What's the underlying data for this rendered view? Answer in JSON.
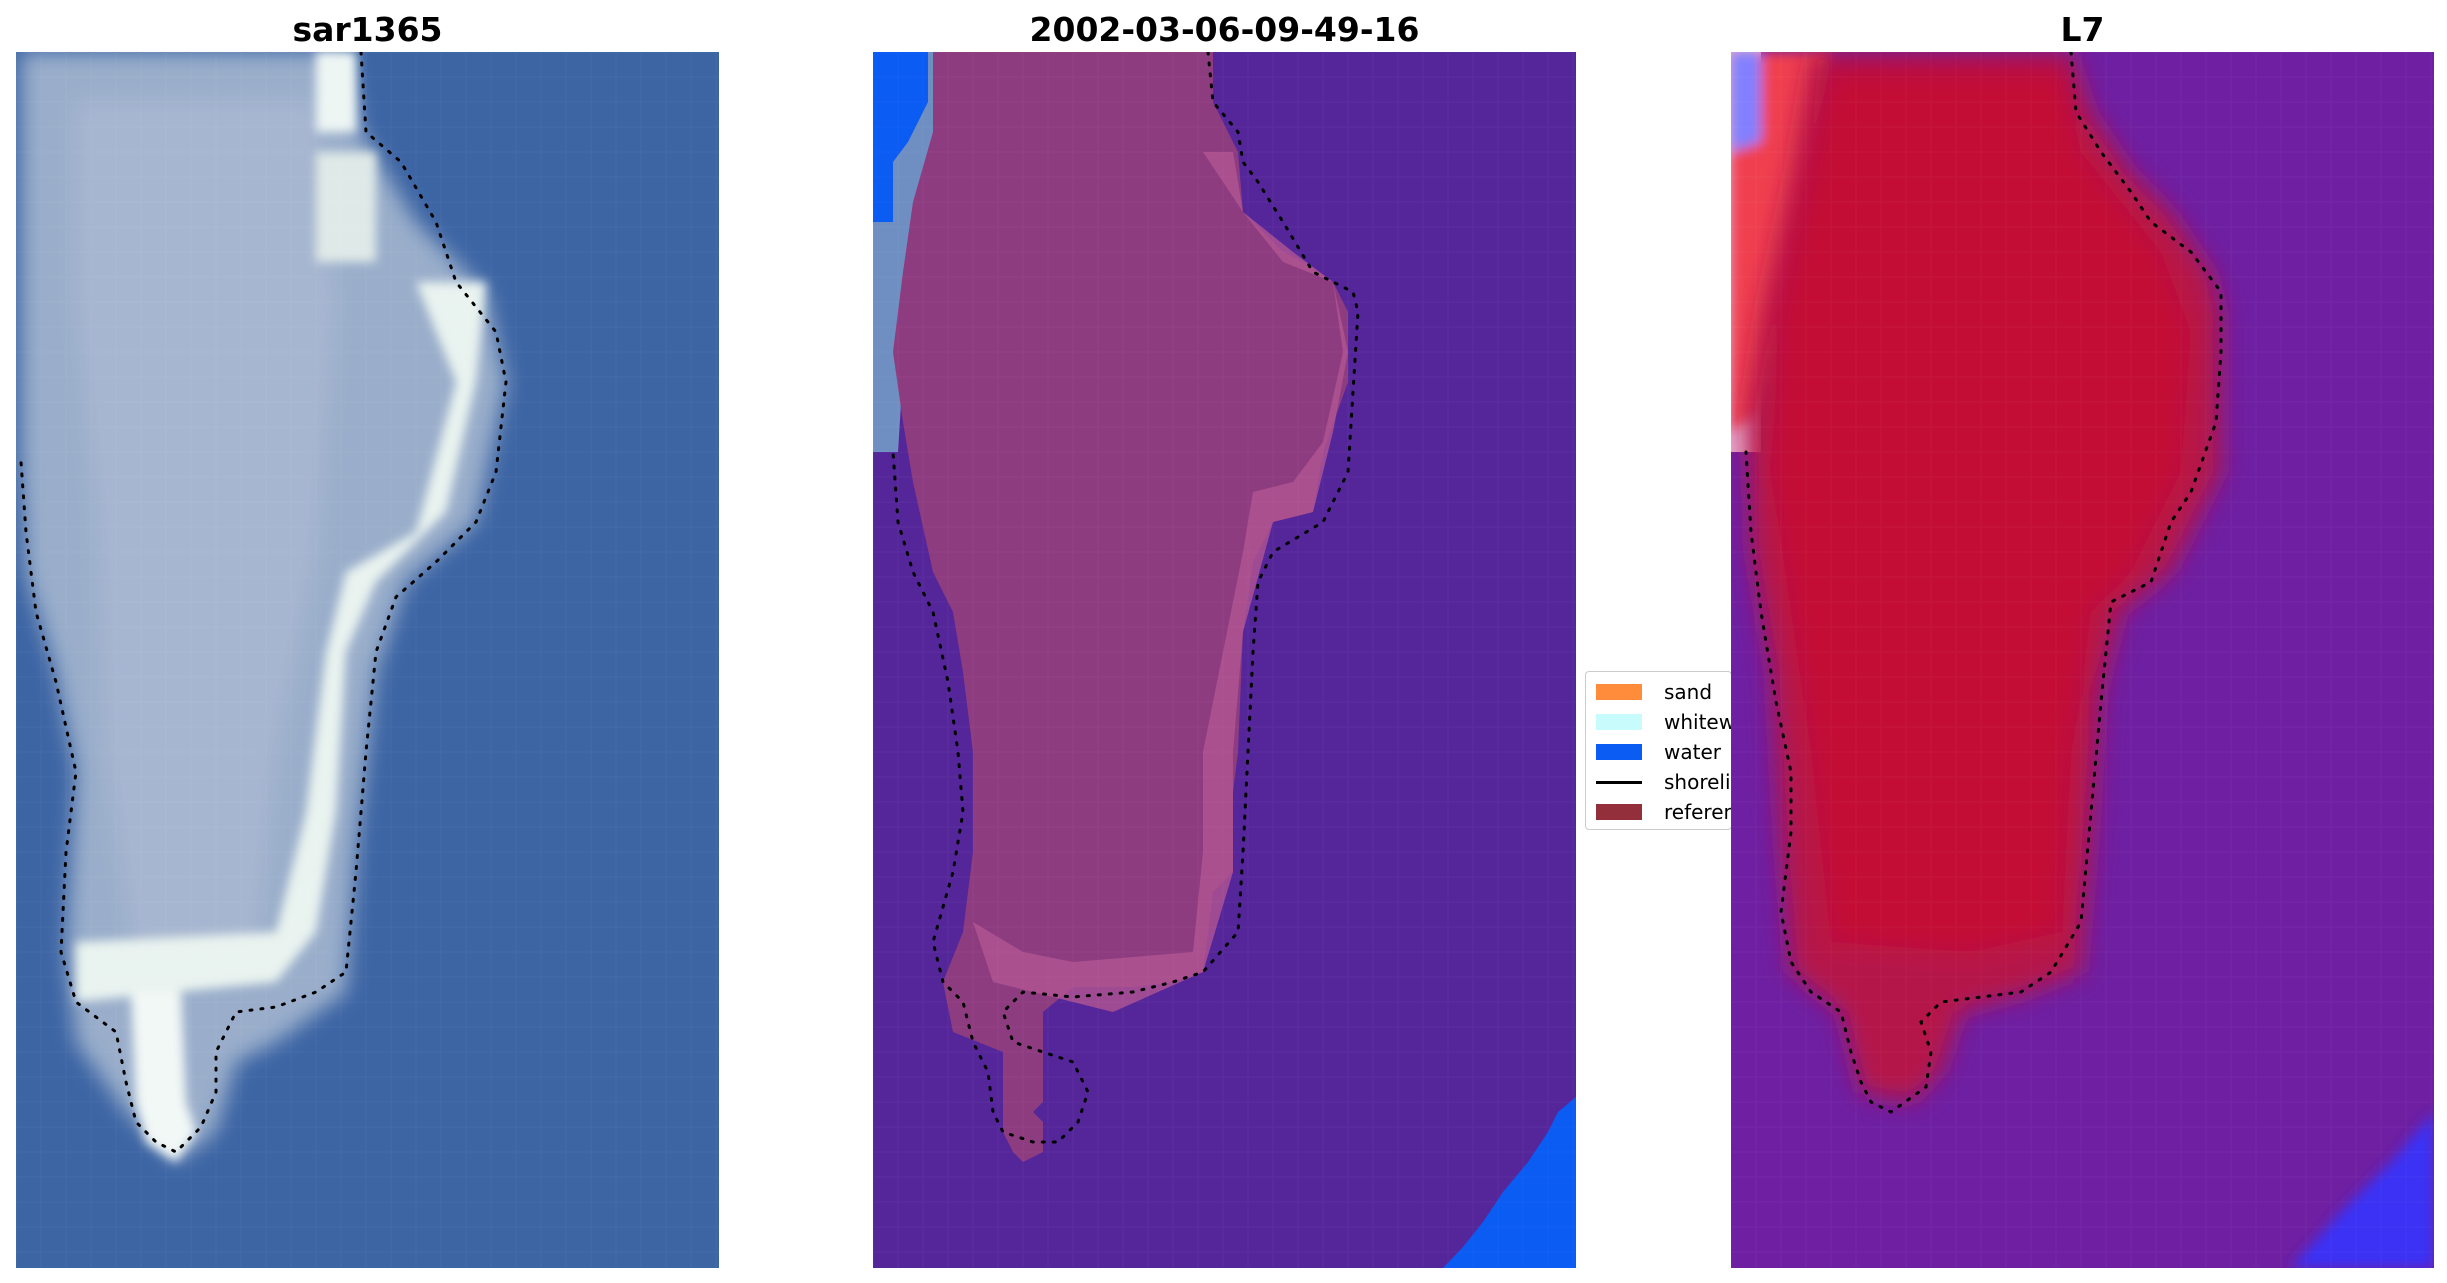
{
  "panels": [
    {
      "title": "sar1365"
    },
    {
      "title": "2002-03-06-09-49-16"
    },
    {
      "title": "L7"
    }
  ],
  "legend": {
    "items": [
      {
        "label": "sand",
        "color": "#ff8c3a",
        "kind": "patch"
      },
      {
        "label": "whitewater",
        "color": "#c8fcfc",
        "kind": "patch"
      },
      {
        "label": "water",
        "color": "#0b5cf3",
        "kind": "patch"
      },
      {
        "label": "shoreline",
        "color": "#000000",
        "kind": "line"
      },
      {
        "label": "reference shoreline",
        "color": "#932f3a",
        "kind": "patch"
      }
    ]
  },
  "colors": {
    "rgb_water": "#3a62a2",
    "rgb_island": "#9aacc6",
    "rgb_surf": "#e8f2f0",
    "class_water": "#55269a",
    "class_sand_overlay": "#8e3c80",
    "class_water_edge": "#0b5cf3",
    "index_water": "#6e1fa2",
    "index_land": "#c30a35",
    "index_shallow": "#f04050",
    "index_deep": "#3a30f5"
  }
}
